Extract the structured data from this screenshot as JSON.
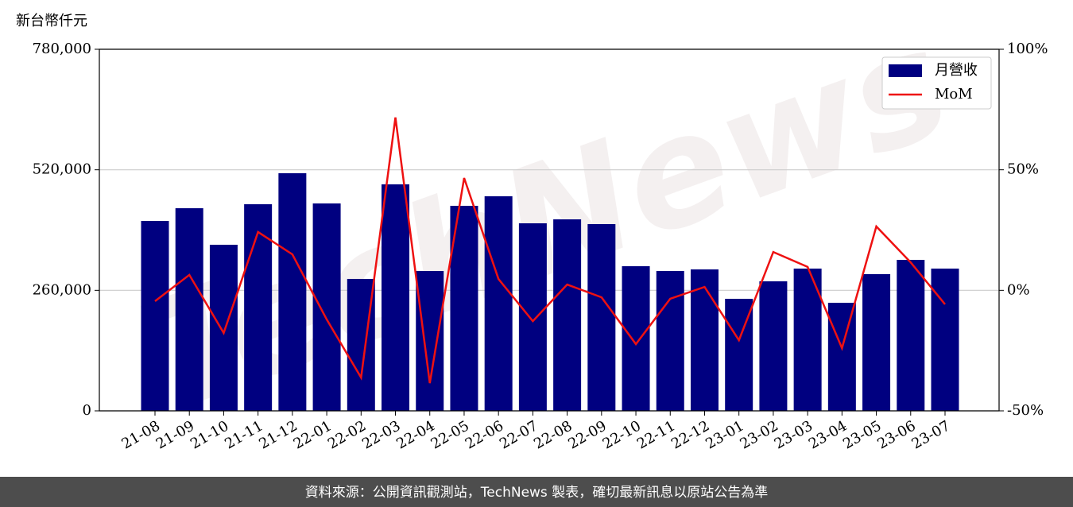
{
  "chart_data": {
    "type": "bar_line",
    "y_label": "新台幣仟元",
    "watermark": "TechNews",
    "footer": "資料來源：公開資訊觀測站，TechNews 製表，確切最新訊息以原站公告為準",
    "categories": [
      "21-08",
      "21-09",
      "21-10",
      "21-11",
      "21-12",
      "22-01",
      "22-02",
      "22-03",
      "22-04",
      "22-05",
      "22-06",
      "22-07",
      "22-08",
      "22-09",
      "22-10",
      "22-11",
      "22-12",
      "23-01",
      "23-02",
      "23-03",
      "23-04",
      "23-05",
      "23-06",
      "23-07"
    ],
    "series": [
      {
        "name": "月營收",
        "type": "bar",
        "color": "#000080",
        "values": [
          409700,
          437100,
          358300,
          445700,
          512600,
          447400,
          284600,
          488600,
          301700,
          442300,
          462900,
          404600,
          413100,
          402900,
          312000,
          301700,
          305100,
          241700,
          279400,
          306900,
          233100,
          294900,
          325700,
          306900
        ]
      },
      {
        "name": "MoM",
        "type": "line",
        "axis": "y2",
        "color": "#ee1111",
        "values": [
          -4.5,
          6.4,
          -17.7,
          24.2,
          14.9,
          -12.1,
          -36.2,
          71.7,
          -38.5,
          46.6,
          4.7,
          -12.8,
          2.4,
          -2.9,
          -22.3,
          -3.5,
          1.4,
          -20.7,
          15.9,
          9.7,
          -24.0,
          26.5,
          11.6,
          -5.8
        ]
      }
    ],
    "ylim": [
      0,
      780000
    ],
    "yticks": [
      0,
      {
        "value": 260000,
        "label": "260,000"
      },
      {
        "value": 520000,
        "label": "520,000"
      },
      {
        "value": 780000,
        "label": "780,000"
      }
    ],
    "y2lim": [
      -50,
      100
    ],
    "y2ticks": [
      {
        "value": -50,
        "label": "-50%"
      },
      {
        "value": 0,
        "label": "0%"
      },
      {
        "value": 50,
        "label": "50%"
      },
      {
        "value": 100,
        "label": "100%"
      }
    ],
    "grid": true,
    "legend": "upper right"
  }
}
